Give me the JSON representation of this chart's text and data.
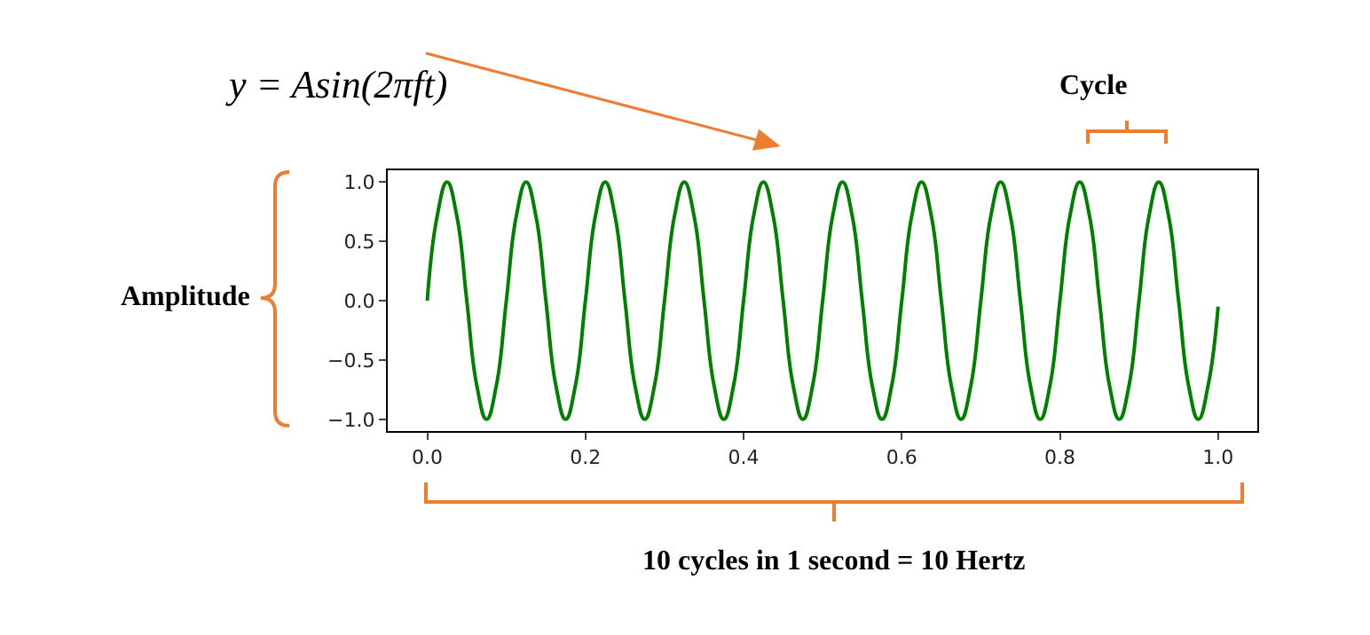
{
  "chart_data": {
    "type": "line",
    "annotations": [
      "y = Asin(2πft)",
      "Cycle",
      "Amplitude",
      "10 cycles in 1 second = 10 Hertz"
    ],
    "x": [
      0,
      0.0125,
      0.025,
      0.0375,
      0.05,
      0.0625,
      0.075,
      0.0875,
      0.1,
      0.1125,
      0.125,
      0.1375,
      0.15,
      0.1625,
      0.175,
      0.1875,
      0.2,
      0.2125,
      0.225,
      0.2375,
      0.25,
      0.2625,
      0.275,
      0.2875,
      0.3,
      0.3125,
      0.325,
      0.3375,
      0.35,
      0.3625,
      0.375,
      0.3875,
      0.4,
      0.4125,
      0.425,
      0.4375,
      0.45,
      0.4625,
      0.475,
      0.4875,
      0.5,
      0.5125,
      0.525,
      0.5375,
      0.55,
      0.5625,
      0.575,
      0.5875,
      0.6,
      0.6125,
      0.625,
      0.6375,
      0.65,
      0.6625,
      0.675,
      0.6875,
      0.7,
      0.7125,
      0.725,
      0.7375,
      0.75,
      0.7625,
      0.775,
      0.7875,
      0.8,
      0.8125,
      0.825,
      0.8375,
      0.85,
      0.8625,
      0.875,
      0.8875,
      0.9,
      0.9125,
      0.925,
      0.9375,
      0.95,
      0.9625,
      0.975,
      0.9875,
      1
    ],
    "series": [
      {
        "color": "#008000",
        "values": [
          0,
          0.71,
          1,
          0.71,
          0,
          -0.71,
          -1,
          -0.71,
          0,
          0.71,
          1,
          0.71,
          0,
          -0.71,
          -1,
          -0.71,
          0,
          0.71,
          1,
          0.71,
          0,
          -0.71,
          -1,
          -0.71,
          0,
          0.71,
          1,
          0.71,
          0,
          -0.71,
          -1,
          -0.71,
          0,
          0.71,
          1,
          0.71,
          0,
          -0.71,
          -1,
          -0.71,
          0,
          0.71,
          1,
          0.71,
          0,
          -0.71,
          -1,
          -0.71,
          0,
          0.71,
          1,
          0.71,
          0,
          -0.71,
          -1,
          -0.71,
          0,
          0.71,
          1,
          0.71,
          0,
          -0.71,
          -1,
          -0.71,
          0,
          0.71,
          1,
          0.71,
          0,
          -0.71,
          -1,
          -0.71,
          0,
          0.71,
          1,
          0.71,
          0,
          -0.71,
          -1,
          -0.71,
          -0.05
        ]
      }
    ],
    "xlim": [
      -0.05,
      1.05
    ],
    "ylim": [
      -1.1,
      1.1
    ],
    "xticks": [
      {
        "value": 0,
        "label": "0.0"
      },
      {
        "value": 0.2,
        "label": "0.2"
      },
      {
        "value": 0.4,
        "label": "0.4"
      },
      {
        "value": 0.6,
        "label": "0.6"
      },
      {
        "value": 0.8,
        "label": "0.8"
      },
      {
        "value": 1,
        "label": "1.0"
      }
    ],
    "yticks": [
      {
        "value": -1,
        "label": "−1.0"
      },
      {
        "value": -0.5,
        "label": "−0.5"
      },
      {
        "value": 0,
        "label": "0.0"
      },
      {
        "value": 0.5,
        "label": "0.5"
      },
      {
        "value": 1,
        "label": "1.0"
      }
    ],
    "grid": false
  }
}
